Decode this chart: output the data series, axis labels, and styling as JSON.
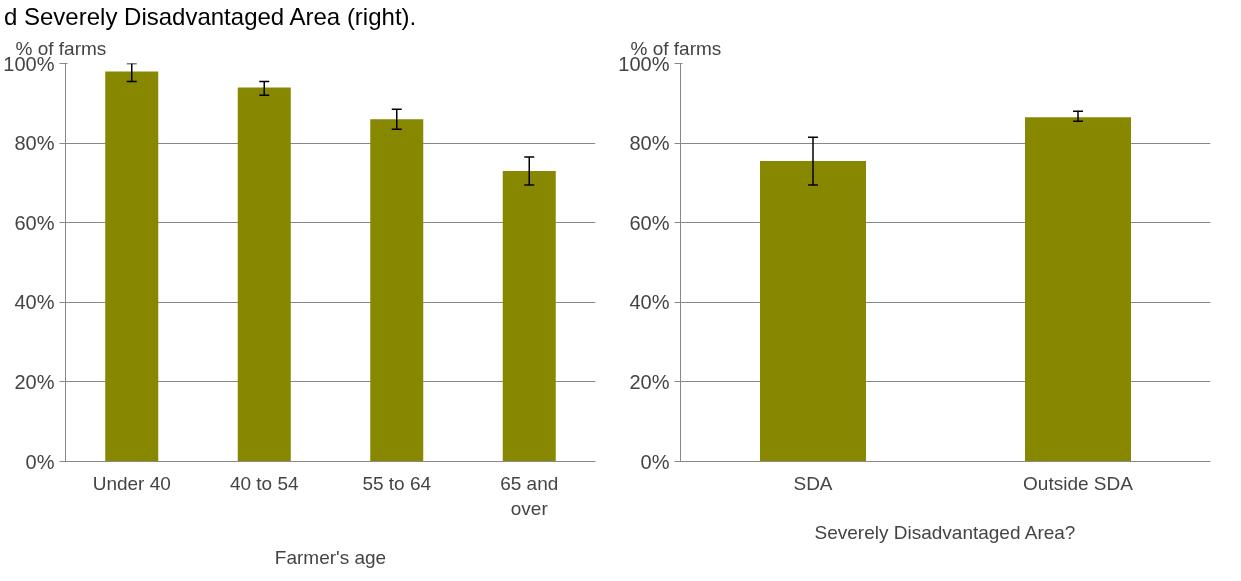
{
  "chart_data": [
    {
      "type": "bar",
      "ylabel": "% of farms",
      "xlabel": "Farmer's age",
      "annotations": [
        "d Severely Disadvantaged Area (right)."
      ],
      "categories": [
        "Under 40",
        "40 to 54",
        "55 to 64",
        "65 and over"
      ],
      "values": [
        98,
        94,
        86,
        73
      ],
      "color": "#878700",
      "errors": [
        [
          95.5,
          100
        ],
        [
          92,
          95.5
        ],
        [
          83.5,
          88.5
        ],
        [
          69.5,
          76.5
        ]
      ],
      "ylim": [
        0,
        100
      ],
      "yticks": [
        {
          "value": 0,
          "label": "0%"
        },
        {
          "value": 20,
          "label": "20%"
        },
        {
          "value": 40,
          "label": "40%"
        },
        {
          "value": 60,
          "label": "60%"
        },
        {
          "value": 80,
          "label": "80%"
        },
        {
          "value": 100,
          "label": "100%"
        }
      ],
      "grid": "y"
    },
    {
      "type": "bar",
      "ylabel": "% of farms",
      "xlabel": "Severely Disadvantaged Area?",
      "categories": [
        "SDA",
        "Outside SDA"
      ],
      "values": [
        75.5,
        86.5
      ],
      "color": "#878700",
      "errors": [
        [
          69.5,
          81.5
        ],
        [
          85.5,
          88
        ]
      ],
      "ylim": [
        0,
        100
      ],
      "yticks": [
        {
          "value": 0,
          "label": "0%"
        },
        {
          "value": 20,
          "label": "20%"
        },
        {
          "value": 40,
          "label": "40%"
        },
        {
          "value": 60,
          "label": "60%"
        },
        {
          "value": 80,
          "label": "80%"
        },
        {
          "value": 100,
          "label": "100%"
        }
      ],
      "grid": "y"
    }
  ]
}
